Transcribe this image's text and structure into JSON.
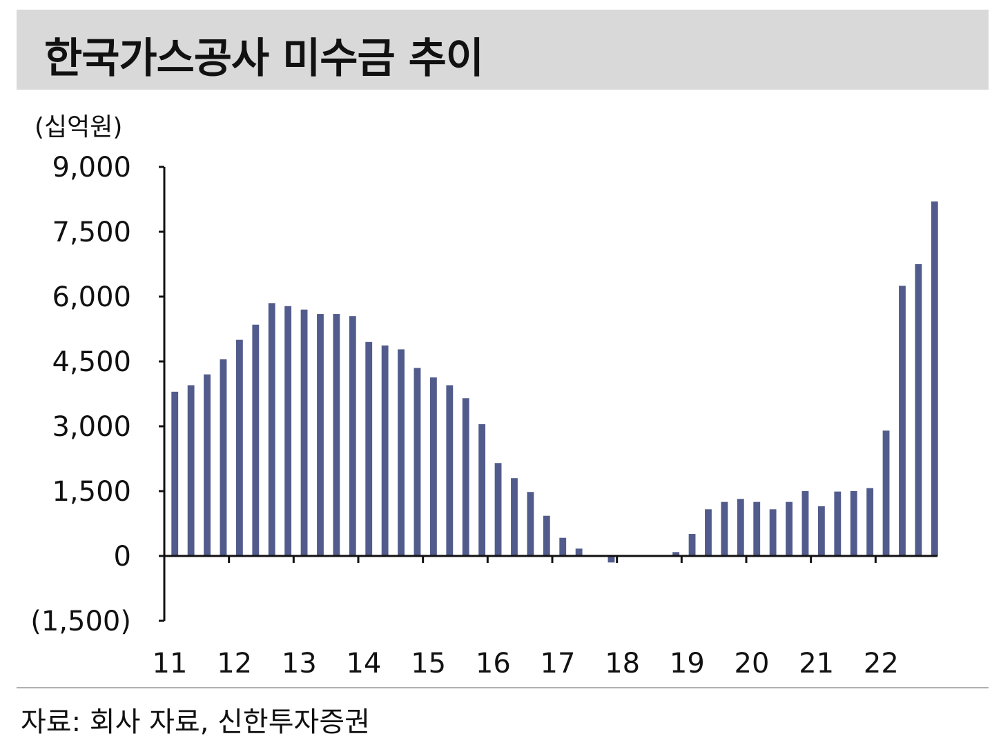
{
  "title": "한국가스공사 미수금 추이",
  "unit": "(십억원)",
  "source": "자료: 회사 자료, 신한투자증권",
  "colors": {
    "bar": "#525c8c",
    "axis": "#111111",
    "title_bg": "#d9d9d9"
  },
  "chart_data": {
    "type": "bar",
    "ylim": [
      -1500,
      9000
    ],
    "yticks": [
      9000,
      7500,
      6000,
      4500,
      3000,
      1500,
      0,
      -1500
    ],
    "ytick_labels": [
      "9,000",
      "7,500",
      "6,000",
      "4,500",
      "3,000",
      "1,500",
      "0",
      "(1,500)"
    ],
    "x_labels": [
      "11",
      "12",
      "13",
      "14",
      "15",
      "16",
      "17",
      "18",
      "19",
      "20",
      "21",
      "22"
    ],
    "x": [
      "11.1Q",
      "11.2Q",
      "11.3Q",
      "11.4Q",
      "12.1Q",
      "12.2Q",
      "12.3Q",
      "12.4Q",
      "13.1Q",
      "13.2Q",
      "13.3Q",
      "13.4Q",
      "14.1Q",
      "14.2Q",
      "14.3Q",
      "14.4Q",
      "15.1Q",
      "15.2Q",
      "15.3Q",
      "15.4Q",
      "16.1Q",
      "16.2Q",
      "16.3Q",
      "16.4Q",
      "17.1Q",
      "17.2Q",
      "17.3Q",
      "17.4Q",
      "18.1Q",
      "18.2Q",
      "18.3Q",
      "18.4Q",
      "19.1Q",
      "19.2Q",
      "19.3Q",
      "19.4Q",
      "20.1Q",
      "20.2Q",
      "20.3Q",
      "20.4Q",
      "21.1Q",
      "21.2Q",
      "21.3Q",
      "21.4Q",
      "22.1Q",
      "22.2Q",
      "22.3Q",
      "22.4Q"
    ],
    "values": [
      3800,
      3950,
      4200,
      4550,
      5000,
      5350,
      5850,
      5780,
      5700,
      5600,
      5600,
      5550,
      4950,
      4870,
      4780,
      4350,
      4130,
      3950,
      3650,
      3050,
      2150,
      1800,
      1480,
      930,
      420,
      170,
      0,
      -150,
      0,
      0,
      0,
      90,
      510,
      1080,
      1250,
      1320,
      1250,
      1080,
      1250,
      1500,
      1150,
      1490,
      1500,
      1570,
      2900,
      6250,
      6750,
      8200
    ],
    "grid": false,
    "legend": "none"
  }
}
